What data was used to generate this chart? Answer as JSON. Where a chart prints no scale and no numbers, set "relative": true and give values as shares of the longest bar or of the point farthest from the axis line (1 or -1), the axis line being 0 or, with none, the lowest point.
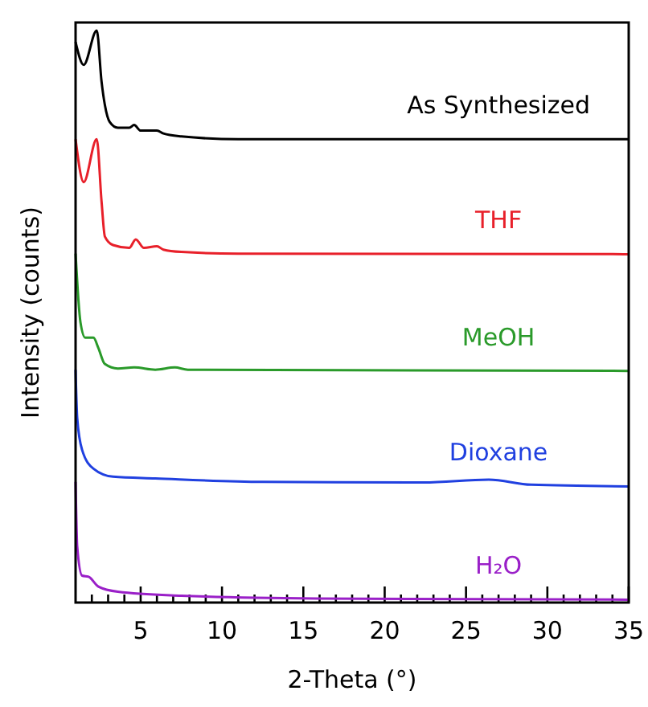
{
  "chart_data": {
    "type": "line",
    "relative": true,
    "xlabel": "2-Theta (°)",
    "ylabel": "Intensity (counts)",
    "xlim": [
      1,
      35
    ],
    "tick_labels": "x",
    "xticks": [
      {
        "value": 2,
        "label": null
      },
      {
        "value": 3,
        "label": null
      },
      {
        "value": 4,
        "label": null
      },
      5,
      {
        "value": 6,
        "label": null
      },
      {
        "value": 7,
        "label": null
      },
      {
        "value": 8,
        "label": null
      },
      {
        "value": 9,
        "label": null
      },
      10,
      {
        "value": 11,
        "label": null
      },
      {
        "value": 12,
        "label": null
      },
      {
        "value": 13,
        "label": null
      },
      {
        "value": 14,
        "label": null
      },
      15,
      {
        "value": 16,
        "label": null
      },
      {
        "value": 17,
        "label": null
      },
      {
        "value": 18,
        "label": null
      },
      {
        "value": 19,
        "label": null
      },
      20,
      {
        "value": 21,
        "label": null
      },
      {
        "value": 22,
        "label": null
      },
      {
        "value": 23,
        "label": null
      },
      {
        "value": 24,
        "label": null
      },
      25,
      {
        "value": 26,
        "label": null
      },
      {
        "value": 27,
        "label": null
      },
      {
        "value": 28,
        "label": null
      },
      {
        "value": 29,
        "label": null
      },
      30,
      {
        "value": 31,
        "label": null
      },
      {
        "value": 32,
        "label": null
      },
      {
        "value": 33,
        "label": null
      },
      {
        "value": 34,
        "label": null
      },
      35
    ],
    "series": [
      {
        "name": "As Synthesized",
        "color": "#000000",
        "x": [
          1,
          1.5,
          2.3,
          2.6,
          2.8,
          3.1,
          3.6,
          4.3,
          4.6,
          5,
          6,
          6.4,
          7.5,
          11,
          20,
          35
        ],
        "values": [
          0.98,
          0.94,
          1.0,
          0.91,
          0.87,
          0.84,
          0.83,
          0.83,
          0.835,
          0.825,
          0.825,
          0.82,
          0.815,
          0.81,
          0.81,
          0.81
        ]
      },
      {
        "name": "THF",
        "color": "#e8202a",
        "x": [
          1,
          1.5,
          2.3,
          2.6,
          2.8,
          3.3,
          4.3,
          4.7,
          5.2,
          6,
          6.4,
          7.5,
          11,
          35
        ],
        "values": [
          0.81,
          0.735,
          0.81,
          0.7,
          0.64,
          0.625,
          0.62,
          0.635,
          0.62,
          0.623,
          0.617,
          0.613,
          0.61,
          0.609
        ]
      },
      {
        "name": "MeOH",
        "color": "#2a9a2a",
        "x": [
          1,
          1.3,
          1.6,
          2.1,
          2.4,
          2.8,
          3.6,
          4.6,
          5.9,
          7.1,
          7.9,
          35
        ],
        "values": [
          0.61,
          0.49,
          0.463,
          0.463,
          0.445,
          0.417,
          0.409,
          0.411,
          0.407,
          0.411,
          0.407,
          0.405
        ]
      },
      {
        "name": "Dioxane",
        "color": "#2040e0",
        "x": [
          1,
          1.1,
          1.4,
          2.1,
          3.3,
          5.9,
          12.5,
          22.4,
          26.4,
          29,
          35
        ],
        "values": [
          0.407,
          0.323,
          0.267,
          0.234,
          0.22,
          0.217,
          0.211,
          0.21,
          0.215,
          0.206,
          0.203
        ]
      },
      {
        "name": "H₂O",
        "color": "#9a20c8",
        "x": [
          1,
          1.1,
          1.4,
          1.8,
          2.4,
          3.6,
          7.5,
          15.8,
          35
        ],
        "values": [
          0.211,
          0.098,
          0.047,
          0.045,
          0.028,
          0.019,
          0.012,
          0.007,
          0.005
        ]
      }
    ]
  }
}
